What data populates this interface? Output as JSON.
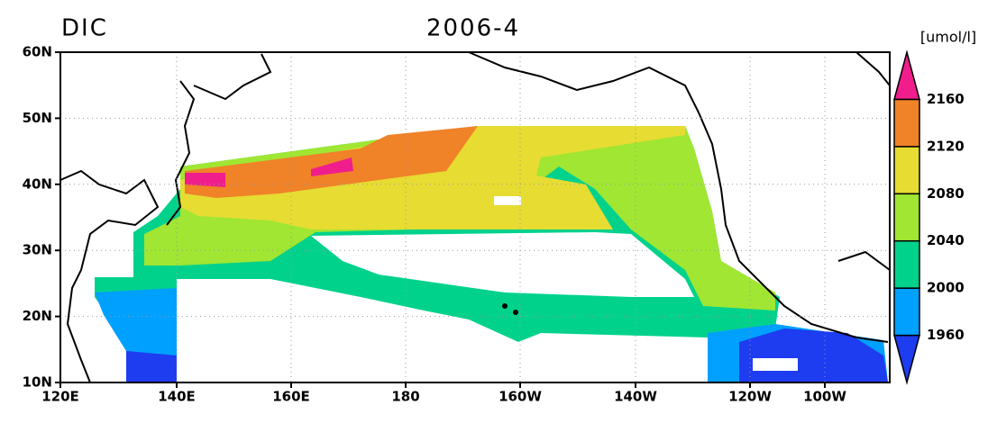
{
  "header": {
    "variable": "DIC",
    "date": "2006-4",
    "units": "[umol/l]"
  },
  "map": {
    "lon_labels": [
      "120E",
      "140E",
      "160E",
      "180",
      "160W",
      "140W",
      "120W",
      "100W"
    ],
    "lat_labels": [
      "10N",
      "20N",
      "30N",
      "40N",
      "50N",
      "60N"
    ]
  },
  "colorbar": {
    "levels": [
      1960,
      2000,
      2040,
      2080,
      2120,
      2160
    ],
    "colors": [
      "#1e3cf0",
      "#00a0ff",
      "#00d28c",
      "#a0e632",
      "#e6dc32",
      "#f08228",
      "#f01e8c"
    ]
  }
}
